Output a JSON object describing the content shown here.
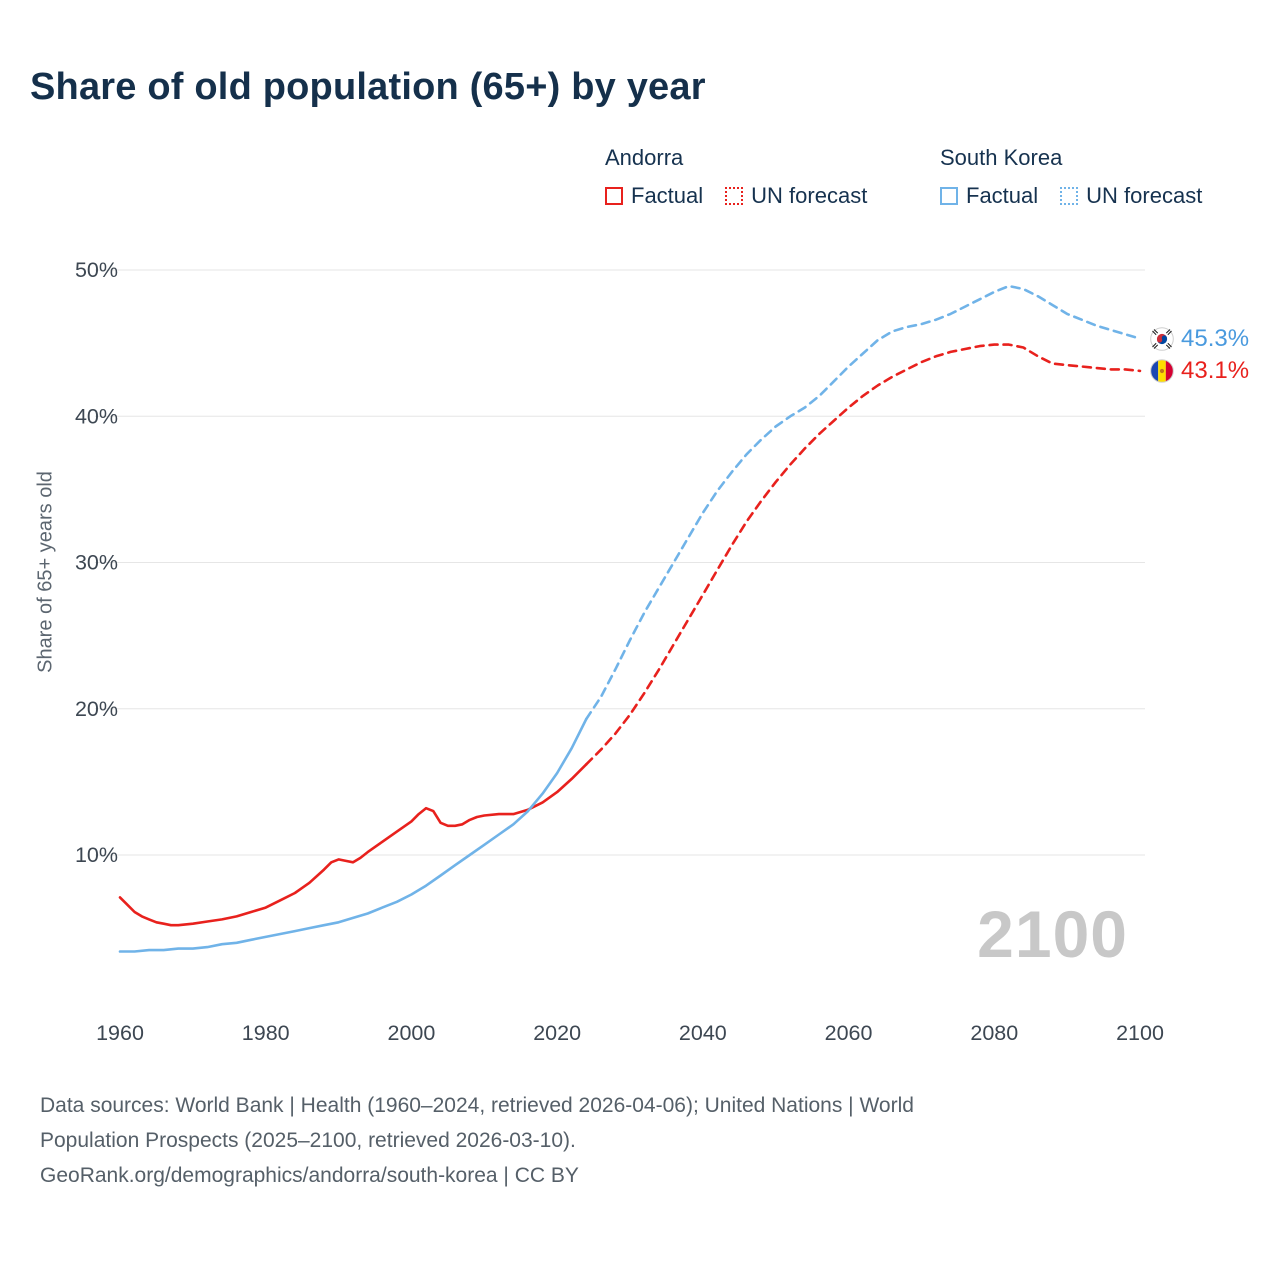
{
  "header": {
    "title": "Share of old population (65+) by year"
  },
  "legend": {
    "groups": [
      {
        "name": "Andorra",
        "factual_label": "Factual",
        "forecast_label": "UN forecast",
        "color": "#e8211d"
      },
      {
        "name": "South Korea",
        "factual_label": "Factual",
        "forecast_label": "UN forecast",
        "color": "#70b3e8"
      }
    ]
  },
  "annotations": {
    "south_korea_value": "45.3%",
    "andorra_value": "43.1%",
    "south_korea_flag": "south-korea-flag-icon",
    "andorra_flag": "andorra-flag-icon",
    "watermark": "2100"
  },
  "colors": {
    "andorra": "#e8211d",
    "south_korea": "#70b3e8",
    "title_text": "#15304b",
    "axis_text": "#3d4752",
    "muted_text": "#555f68",
    "grid": "#e6e6e6",
    "watermark": "#c8c8c8",
    "end_label_blue": "#4a9ade",
    "end_label_red": "#e8211d"
  },
  "footer": {
    "line1": "Data sources: World Bank | Health (1960–2024, retrieved 2026-04-06); United Nations | World",
    "line2": "Population Prospects (2025–2100, retrieved 2026-03-10).",
    "line3": "GeoRank.org/demographics/andorra/south-korea | CC BY"
  },
  "chart_data": {
    "type": "line",
    "title": "Share of old population (65+) by year",
    "xlabel": "",
    "ylabel": "Share of 65+ years old",
    "xlim": [
      1958,
      2104
    ],
    "ylim": [
      0,
      52
    ],
    "xticks": [
      1960,
      1980,
      2000,
      2020,
      2040,
      2060,
      2080,
      2100
    ],
    "yticks": [
      10,
      20,
      30,
      40,
      50
    ],
    "grid": "horizontal",
    "legend_position": "top",
    "series": [
      {
        "name": "Andorra Factual",
        "country": "Andorra",
        "segment": "factual",
        "style": "solid",
        "color": "#e8211d",
        "points": [
          [
            1960,
            7.1
          ],
          [
            1961,
            6.6
          ],
          [
            1962,
            6.1
          ],
          [
            1963,
            5.8
          ],
          [
            1964,
            5.6
          ],
          [
            1965,
            5.4
          ],
          [
            1966,
            5.3
          ],
          [
            1967,
            5.2
          ],
          [
            1968,
            5.2
          ],
          [
            1970,
            5.3
          ],
          [
            1972,
            5.45
          ],
          [
            1974,
            5.6
          ],
          [
            1976,
            5.8
          ],
          [
            1978,
            6.1
          ],
          [
            1980,
            6.4
          ],
          [
            1982,
            6.9
          ],
          [
            1984,
            7.4
          ],
          [
            1986,
            8.1
          ],
          [
            1988,
            9.0
          ],
          [
            1989,
            9.5
          ],
          [
            1990,
            9.7
          ],
          [
            1991,
            9.6
          ],
          [
            1992,
            9.5
          ],
          [
            1993,
            9.8
          ],
          [
            1994,
            10.2
          ],
          [
            1996,
            10.9
          ],
          [
            1998,
            11.6
          ],
          [
            2000,
            12.3
          ],
          [
            2001,
            12.8
          ],
          [
            2002,
            13.2
          ],
          [
            2003,
            13.0
          ],
          [
            2004,
            12.2
          ],
          [
            2005,
            12.0
          ],
          [
            2006,
            12.0
          ],
          [
            2007,
            12.1
          ],
          [
            2008,
            12.4
          ],
          [
            2009,
            12.6
          ],
          [
            2010,
            12.7
          ],
          [
            2012,
            12.8
          ],
          [
            2014,
            12.8
          ],
          [
            2016,
            13.1
          ],
          [
            2018,
            13.6
          ],
          [
            2020,
            14.3
          ],
          [
            2022,
            15.2
          ],
          [
            2024,
            16.2
          ]
        ]
      },
      {
        "name": "Andorra UN forecast",
        "country": "Andorra",
        "segment": "forecast",
        "style": "dashed",
        "color": "#e8211d",
        "points": [
          [
            2024,
            16.2
          ],
          [
            2026,
            17.2
          ],
          [
            2028,
            18.3
          ],
          [
            2030,
            19.6
          ],
          [
            2032,
            21.1
          ],
          [
            2034,
            22.7
          ],
          [
            2036,
            24.4
          ],
          [
            2038,
            26.1
          ],
          [
            2040,
            27.8
          ],
          [
            2042,
            29.5
          ],
          [
            2044,
            31.2
          ],
          [
            2046,
            32.8
          ],
          [
            2048,
            34.2
          ],
          [
            2050,
            35.5
          ],
          [
            2052,
            36.7
          ],
          [
            2054,
            37.8
          ],
          [
            2056,
            38.8
          ],
          [
            2058,
            39.7
          ],
          [
            2060,
            40.6
          ],
          [
            2062,
            41.4
          ],
          [
            2064,
            42.1
          ],
          [
            2066,
            42.7
          ],
          [
            2068,
            43.2
          ],
          [
            2070,
            43.7
          ],
          [
            2072,
            44.1
          ],
          [
            2074,
            44.4
          ],
          [
            2076,
            44.6
          ],
          [
            2078,
            44.8
          ],
          [
            2080,
            44.9
          ],
          [
            2082,
            44.9
          ],
          [
            2084,
            44.7
          ],
          [
            2086,
            44.1
          ],
          [
            2088,
            43.6
          ],
          [
            2090,
            43.5
          ],
          [
            2092,
            43.4
          ],
          [
            2094,
            43.3
          ],
          [
            2096,
            43.2
          ],
          [
            2098,
            43.2
          ],
          [
            2100,
            43.1
          ]
        ]
      },
      {
        "name": "South Korea Factual",
        "country": "South Korea",
        "segment": "factual",
        "style": "solid",
        "color": "#70b3e8",
        "points": [
          [
            1960,
            3.4
          ],
          [
            1962,
            3.4
          ],
          [
            1964,
            3.5
          ],
          [
            1966,
            3.5
          ],
          [
            1968,
            3.6
          ],
          [
            1970,
            3.6
          ],
          [
            1972,
            3.7
          ],
          [
            1974,
            3.9
          ],
          [
            1976,
            4.0
          ],
          [
            1978,
            4.2
          ],
          [
            1980,
            4.4
          ],
          [
            1982,
            4.6
          ],
          [
            1984,
            4.8
          ],
          [
            1986,
            5.0
          ],
          [
            1988,
            5.2
          ],
          [
            1990,
            5.4
          ],
          [
            1992,
            5.7
          ],
          [
            1994,
            6.0
          ],
          [
            1996,
            6.4
          ],
          [
            1998,
            6.8
          ],
          [
            2000,
            7.3
          ],
          [
            2002,
            7.9
          ],
          [
            2004,
            8.6
          ],
          [
            2006,
            9.3
          ],
          [
            2008,
            10.0
          ],
          [
            2010,
            10.7
          ],
          [
            2012,
            11.4
          ],
          [
            2014,
            12.1
          ],
          [
            2016,
            13.0
          ],
          [
            2018,
            14.2
          ],
          [
            2020,
            15.6
          ],
          [
            2022,
            17.3
          ],
          [
            2024,
            19.3
          ]
        ]
      },
      {
        "name": "South Korea UN forecast",
        "country": "South Korea",
        "segment": "forecast",
        "style": "dashed",
        "color": "#70b3e8",
        "points": [
          [
            2024,
            19.3
          ],
          [
            2026,
            20.8
          ],
          [
            2028,
            22.7
          ],
          [
            2030,
            24.7
          ],
          [
            2032,
            26.6
          ],
          [
            2034,
            28.3
          ],
          [
            2036,
            30.0
          ],
          [
            2038,
            31.7
          ],
          [
            2040,
            33.4
          ],
          [
            2042,
            34.9
          ],
          [
            2044,
            36.2
          ],
          [
            2046,
            37.4
          ],
          [
            2048,
            38.4
          ],
          [
            2050,
            39.3
          ],
          [
            2052,
            40.0
          ],
          [
            2054,
            40.6
          ],
          [
            2056,
            41.4
          ],
          [
            2058,
            42.4
          ],
          [
            2060,
            43.4
          ],
          [
            2062,
            44.3
          ],
          [
            2064,
            45.2
          ],
          [
            2066,
            45.8
          ],
          [
            2068,
            46.1
          ],
          [
            2070,
            46.3
          ],
          [
            2072,
            46.6
          ],
          [
            2074,
            47.0
          ],
          [
            2076,
            47.5
          ],
          [
            2078,
            48.0
          ],
          [
            2080,
            48.5
          ],
          [
            2082,
            48.9
          ],
          [
            2084,
            48.7
          ],
          [
            2086,
            48.2
          ],
          [
            2088,
            47.6
          ],
          [
            2090,
            47.0
          ],
          [
            2092,
            46.6
          ],
          [
            2094,
            46.2
          ],
          [
            2096,
            45.9
          ],
          [
            2098,
            45.6
          ],
          [
            2100,
            45.3
          ]
        ]
      }
    ]
  }
}
